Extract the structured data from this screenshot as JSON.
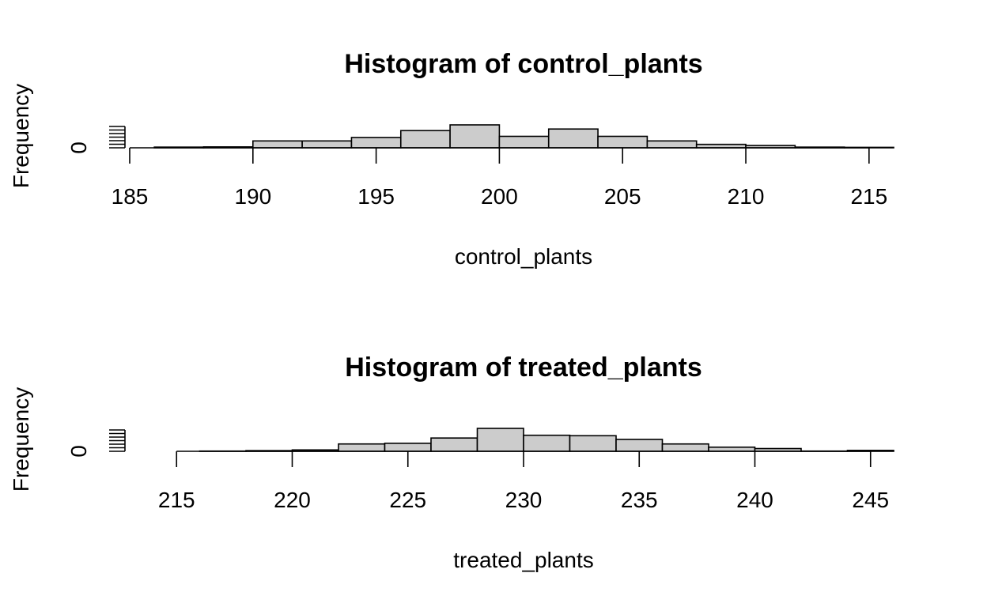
{
  "chart_data": [
    {
      "type": "bar",
      "title": "Histogram of control_plants",
      "xlabel": "control_plants",
      "ylabel": "Frequency",
      "bar_color": "#cccccc",
      "xlim": [
        185,
        216
      ],
      "ylim": [
        0,
        10
      ],
      "x_ticks": [
        185,
        190,
        195,
        200,
        205,
        210,
        215
      ],
      "y_tick_labels": [
        "0"
      ],
      "bin_width": 2,
      "bins": [
        {
          "start": 186,
          "count": 0.3
        },
        {
          "start": 188,
          "count": 0.4
        },
        {
          "start": 190,
          "count": 3.0
        },
        {
          "start": 192,
          "count": 3.0
        },
        {
          "start": 194,
          "count": 4.5
        },
        {
          "start": 196,
          "count": 7.5
        },
        {
          "start": 198,
          "count": 10.0
        },
        {
          "start": 200,
          "count": 5.0
        },
        {
          "start": 202,
          "count": 8.2
        },
        {
          "start": 204,
          "count": 5.0
        },
        {
          "start": 206,
          "count": 3.0
        },
        {
          "start": 208,
          "count": 1.5
        },
        {
          "start": 210,
          "count": 1.0
        },
        {
          "start": 212,
          "count": 0.3
        },
        {
          "start": 214,
          "count": 0.2
        }
      ]
    },
    {
      "type": "bar",
      "title": "Histogram of treated_plants",
      "xlabel": "treated_plants",
      "ylabel": "Frequency",
      "bar_color": "#cccccc",
      "xlim": [
        214,
        246
      ],
      "ylim": [
        0,
        10
      ],
      "x_ticks": [
        215,
        220,
        225,
        230,
        235,
        240,
        245
      ],
      "y_tick_labels": [
        "0"
      ],
      "bin_width": 2,
      "bins": [
        {
          "start": 216,
          "count": 0.1
        },
        {
          "start": 218,
          "count": 0.3
        },
        {
          "start": 220,
          "count": 0.6
        },
        {
          "start": 222,
          "count": 3.2
        },
        {
          "start": 224,
          "count": 3.5
        },
        {
          "start": 226,
          "count": 5.8
        },
        {
          "start": 228,
          "count": 10.0
        },
        {
          "start": 230,
          "count": 7.0
        },
        {
          "start": 232,
          "count": 6.8
        },
        {
          "start": 234,
          "count": 5.2
        },
        {
          "start": 236,
          "count": 3.2
        },
        {
          "start": 238,
          "count": 1.8
        },
        {
          "start": 240,
          "count": 1.2
        },
        {
          "start": 242,
          "count": 0.1
        },
        {
          "start": 244,
          "count": 0.4
        }
      ]
    }
  ]
}
